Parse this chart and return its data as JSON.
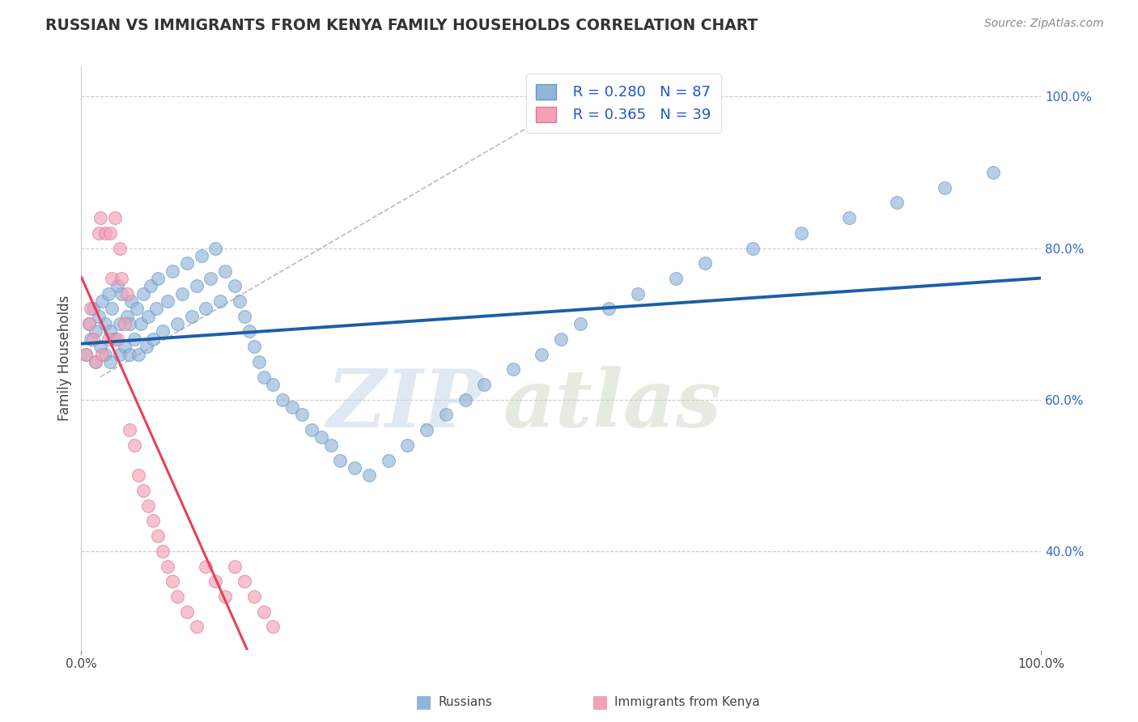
{
  "title": "RUSSIAN VS IMMIGRANTS FROM KENYA FAMILY HOUSEHOLDS CORRELATION CHART",
  "source_text": "Source: ZipAtlas.com",
  "ylabel": "Family Households",
  "watermark": "ZIPatlas",
  "legend_r1": "R = 0.280",
  "legend_n1": "N = 87",
  "legend_r2": "R = 0.365",
  "legend_n2": "N = 39",
  "blue_color": "#92B4D7",
  "pink_color": "#F4A0B5",
  "blue_line_color": "#1A5FA8",
  "pink_line_color": "#E8405A",
  "gray_dash_color": "#BBBBBB",
  "ytick_labels": [
    "40.0%",
    "60.0%",
    "80.0%",
    "100.0%"
  ],
  "ytick_values": [
    0.4,
    0.6,
    0.8,
    1.0
  ],
  "xmin": 0.0,
  "xmax": 1.0,
  "ymin": 0.27,
  "ymax": 1.04,
  "russians_x": [
    0.005,
    0.008,
    0.01,
    0.012,
    0.015,
    0.015,
    0.018,
    0.02,
    0.022,
    0.025,
    0.025,
    0.028,
    0.03,
    0.03,
    0.032,
    0.035,
    0.038,
    0.04,
    0.04,
    0.042,
    0.045,
    0.048,
    0.05,
    0.05,
    0.052,
    0.055,
    0.058,
    0.06,
    0.062,
    0.065,
    0.068,
    0.07,
    0.072,
    0.075,
    0.078,
    0.08,
    0.085,
    0.09,
    0.095,
    0.1,
    0.105,
    0.11,
    0.115,
    0.12,
    0.125,
    0.13,
    0.135,
    0.14,
    0.145,
    0.15,
    0.16,
    0.165,
    0.17,
    0.175,
    0.18,
    0.185,
    0.19,
    0.2,
    0.21,
    0.22,
    0.23,
    0.24,
    0.25,
    0.26,
    0.27,
    0.285,
    0.3,
    0.32,
    0.34,
    0.36,
    0.38,
    0.4,
    0.42,
    0.45,
    0.48,
    0.5,
    0.52,
    0.55,
    0.58,
    0.62,
    0.65,
    0.7,
    0.75,
    0.8,
    0.85,
    0.9,
    0.95
  ],
  "russians_y": [
    0.66,
    0.7,
    0.68,
    0.72,
    0.65,
    0.69,
    0.71,
    0.67,
    0.73,
    0.66,
    0.7,
    0.74,
    0.65,
    0.69,
    0.72,
    0.68,
    0.75,
    0.66,
    0.7,
    0.74,
    0.67,
    0.71,
    0.66,
    0.7,
    0.73,
    0.68,
    0.72,
    0.66,
    0.7,
    0.74,
    0.67,
    0.71,
    0.75,
    0.68,
    0.72,
    0.76,
    0.69,
    0.73,
    0.77,
    0.7,
    0.74,
    0.78,
    0.71,
    0.75,
    0.79,
    0.72,
    0.76,
    0.8,
    0.73,
    0.77,
    0.75,
    0.73,
    0.71,
    0.69,
    0.67,
    0.65,
    0.63,
    0.62,
    0.6,
    0.59,
    0.58,
    0.56,
    0.55,
    0.54,
    0.52,
    0.51,
    0.5,
    0.52,
    0.54,
    0.56,
    0.58,
    0.6,
    0.62,
    0.64,
    0.66,
    0.68,
    0.7,
    0.72,
    0.74,
    0.76,
    0.78,
    0.8,
    0.82,
    0.84,
    0.86,
    0.88,
    0.9
  ],
  "kenya_x": [
    0.005,
    0.008,
    0.01,
    0.012,
    0.015,
    0.018,
    0.02,
    0.022,
    0.025,
    0.028,
    0.03,
    0.032,
    0.035,
    0.038,
    0.04,
    0.042,
    0.045,
    0.048,
    0.05,
    0.055,
    0.06,
    0.065,
    0.07,
    0.075,
    0.08,
    0.085,
    0.09,
    0.095,
    0.1,
    0.11,
    0.12,
    0.13,
    0.14,
    0.15,
    0.16,
    0.17,
    0.18,
    0.19,
    0.2
  ],
  "kenya_y": [
    0.66,
    0.7,
    0.72,
    0.68,
    0.65,
    0.82,
    0.84,
    0.66,
    0.82,
    0.68,
    0.82,
    0.76,
    0.84,
    0.68,
    0.8,
    0.76,
    0.7,
    0.74,
    0.56,
    0.54,
    0.5,
    0.48,
    0.46,
    0.44,
    0.42,
    0.4,
    0.38,
    0.36,
    0.34,
    0.32,
    0.3,
    0.38,
    0.36,
    0.34,
    0.38,
    0.36,
    0.34,
    0.32,
    0.3
  ]
}
